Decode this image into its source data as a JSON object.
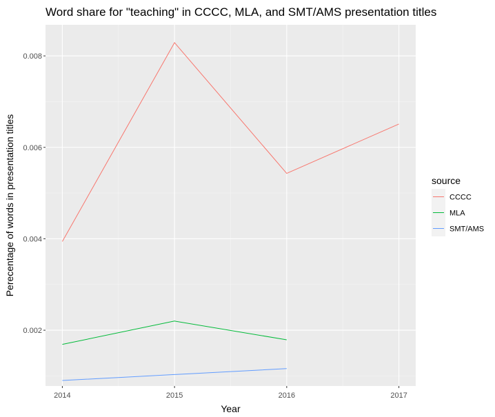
{
  "chart_data": {
    "type": "line",
    "title": "Word share for \"teaching\" in CCCC, MLA, and SMT/AMS presentation titles",
    "xlabel": "Year",
    "ylabel": "Perecentage of words in presentation titles",
    "x_ticks": [
      2014,
      2015,
      2016,
      2017
    ],
    "y_ticks": [
      0.002,
      0.004,
      0.006,
      0.008
    ],
    "y_tick_labels": [
      "0.002",
      "0.004",
      "0.006",
      "0.008"
    ],
    "xlim": [
      2013.85,
      2017.15
    ],
    "ylim": [
      0.00078,
      0.00868
    ],
    "grid": true,
    "legend": {
      "title": "source",
      "position": "right"
    },
    "series": [
      {
        "name": "CCCC",
        "color": "#F8766D",
        "x": [
          2014,
          2015,
          2016,
          2017
        ],
        "y": [
          0.00394,
          0.00829,
          0.00543,
          0.00651
        ]
      },
      {
        "name": "MLA",
        "color": "#00BA38",
        "x": [
          2014,
          2015,
          2016
        ],
        "y": [
          0.00169,
          0.0022,
          0.00179
        ]
      },
      {
        "name": "SMT/AMS",
        "color": "#619CFF",
        "x": [
          2014,
          2015,
          2016
        ],
        "y": [
          0.0009,
          0.00103,
          0.00116
        ]
      }
    ]
  }
}
